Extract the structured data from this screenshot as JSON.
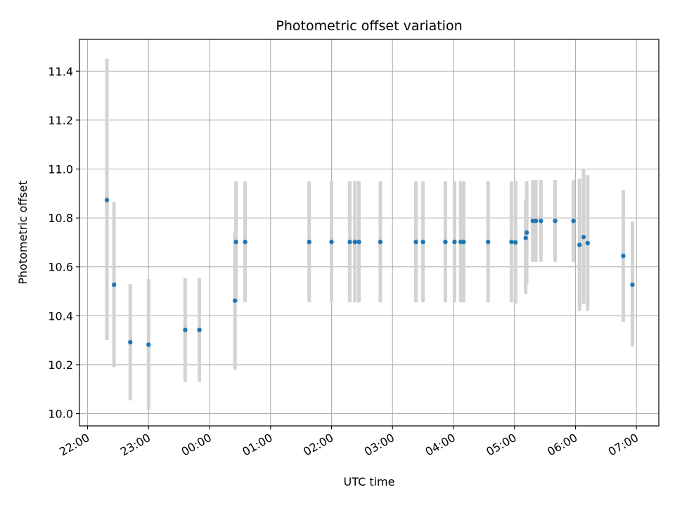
{
  "chart_data": {
    "type": "scatter",
    "title": "Photometric offset variation",
    "xlabel": "UTC time",
    "ylabel": "Photometric offset",
    "x_tick_labels": [
      "22:00",
      "23:00",
      "00:00",
      "01:00",
      "02:00",
      "03:00",
      "04:00",
      "05:00",
      "06:00",
      "07:00"
    ],
    "y_tick_labels": [
      "10.0",
      "10.2",
      "10.4",
      "10.6",
      "10.8",
      "11.0",
      "11.2",
      "11.4"
    ],
    "x_ticks": [
      "22:00",
      "23:00",
      "00:00",
      "01:00",
      "02:00",
      "03:00",
      "04:00",
      "05:00",
      "06:00",
      "07:00"
    ],
    "y_ticks": [
      10.0,
      10.2,
      10.4,
      10.6,
      10.8,
      11.0,
      11.2,
      11.4
    ],
    "xlim": [
      "21:52",
      "07:22"
    ],
    "ylim": [
      9.95,
      11.53
    ],
    "grid": true,
    "point_color": "#1f77b4",
    "errorbar_color": "#d3d3d3",
    "points": [
      {
        "x": "22:19",
        "y": 10.873,
        "err_low": 10.3,
        "err_high": 11.45
      },
      {
        "x": "22:26",
        "y": 10.527,
        "err_low": 10.19,
        "err_high": 10.865
      },
      {
        "x": "22:42",
        "y": 10.292,
        "err_low": 10.055,
        "err_high": 10.53
      },
      {
        "x": "23:00",
        "y": 10.282,
        "err_low": 10.015,
        "err_high": 10.55
      },
      {
        "x": "23:36",
        "y": 10.342,
        "err_low": 10.13,
        "err_high": 10.555
      },
      {
        "x": "23:50",
        "y": 10.342,
        "err_low": 10.13,
        "err_high": 10.555
      },
      {
        "x": "00:25",
        "y": 10.462,
        "err_low": 10.18,
        "err_high": 10.745
      },
      {
        "x": "00:26",
        "y": 10.702,
        "err_low": 10.455,
        "err_high": 10.95
      },
      {
        "x": "00:35",
        "y": 10.702,
        "err_low": 10.455,
        "err_high": 10.95
      },
      {
        "x": "01:38",
        "y": 10.702,
        "err_low": 10.455,
        "err_high": 10.95
      },
      {
        "x": "02:00",
        "y": 10.702,
        "err_low": 10.455,
        "err_high": 10.95
      },
      {
        "x": "02:18",
        "y": 10.702,
        "err_low": 10.455,
        "err_high": 10.95
      },
      {
        "x": "02:23",
        "y": 10.702,
        "err_low": 10.455,
        "err_high": 10.95
      },
      {
        "x": "02:27",
        "y": 10.702,
        "err_low": 10.455,
        "err_high": 10.95
      },
      {
        "x": "02:48",
        "y": 10.702,
        "err_low": 10.455,
        "err_high": 10.95
      },
      {
        "x": "03:23",
        "y": 10.702,
        "err_low": 10.455,
        "err_high": 10.95
      },
      {
        "x": "03:30",
        "y": 10.702,
        "err_low": 10.455,
        "err_high": 10.95
      },
      {
        "x": "03:52",
        "y": 10.702,
        "err_low": 10.455,
        "err_high": 10.95
      },
      {
        "x": "04:01",
        "y": 10.702,
        "err_low": 10.455,
        "err_high": 10.95
      },
      {
        "x": "04:07",
        "y": 10.702,
        "err_low": 10.455,
        "err_high": 10.95
      },
      {
        "x": "04:10",
        "y": 10.702,
        "err_low": 10.455,
        "err_high": 10.95
      },
      {
        "x": "04:34",
        "y": 10.702,
        "err_low": 10.455,
        "err_high": 10.95
      },
      {
        "x": "04:57",
        "y": 10.702,
        "err_low": 10.455,
        "err_high": 10.95
      },
      {
        "x": "05:01",
        "y": 10.7,
        "err_low": 10.45,
        "err_high": 10.95
      },
      {
        "x": "05:11",
        "y": 10.718,
        "err_low": 10.49,
        "err_high": 10.87
      },
      {
        "x": "05:12",
        "y": 10.74,
        "err_low": 10.53,
        "err_high": 10.95
      },
      {
        "x": "05:18",
        "y": 10.788,
        "err_low": 10.62,
        "err_high": 10.955
      },
      {
        "x": "05:21",
        "y": 10.788,
        "err_low": 10.62,
        "err_high": 10.955
      },
      {
        "x": "05:26",
        "y": 10.788,
        "err_low": 10.62,
        "err_high": 10.955
      },
      {
        "x": "05:40",
        "y": 10.788,
        "err_low": 10.62,
        "err_high": 10.955
      },
      {
        "x": "05:58",
        "y": 10.788,
        "err_low": 10.62,
        "err_high": 10.955
      },
      {
        "x": "06:04",
        "y": 10.69,
        "err_low": 10.42,
        "err_high": 10.96
      },
      {
        "x": "06:08",
        "y": 10.722,
        "err_low": 10.45,
        "err_high": 11.0
      },
      {
        "x": "06:12",
        "y": 10.697,
        "err_low": 10.42,
        "err_high": 10.975
      },
      {
        "x": "06:47",
        "y": 10.645,
        "err_low": 10.375,
        "err_high": 10.915
      },
      {
        "x": "06:56",
        "y": 10.527,
        "err_low": 10.275,
        "err_high": 10.785
      }
    ]
  }
}
